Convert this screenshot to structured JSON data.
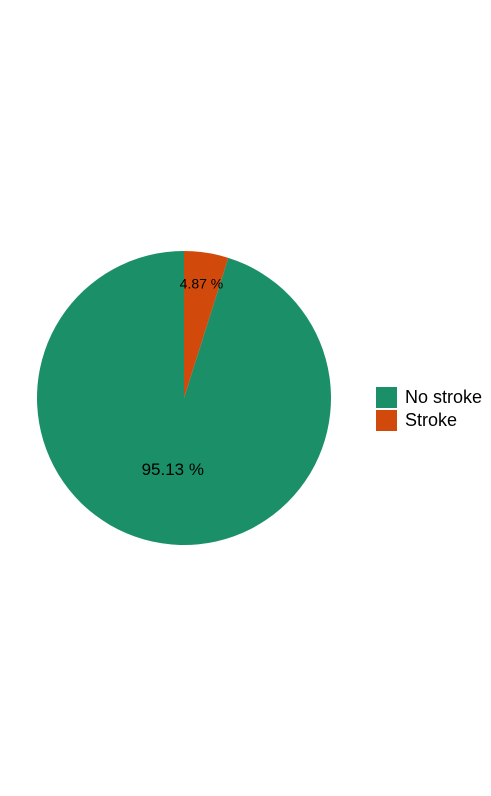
{
  "chart_data": {
    "type": "pie",
    "title": "",
    "categories": [
      "No stroke",
      "Stroke"
    ],
    "values": [
      95.13,
      4.87
    ],
    "labels": [
      "95.13 %",
      "4.87 %"
    ],
    "colors": [
      "#1b9068",
      "#d24a0b"
    ],
    "start_angle_deg": 0,
    "direction": "counterclockwise",
    "legend": {
      "position": "right",
      "items": [
        {
          "label": "No stroke",
          "color": "#1b9068"
        },
        {
          "label": "Stroke",
          "color": "#d24a0b"
        }
      ]
    }
  }
}
